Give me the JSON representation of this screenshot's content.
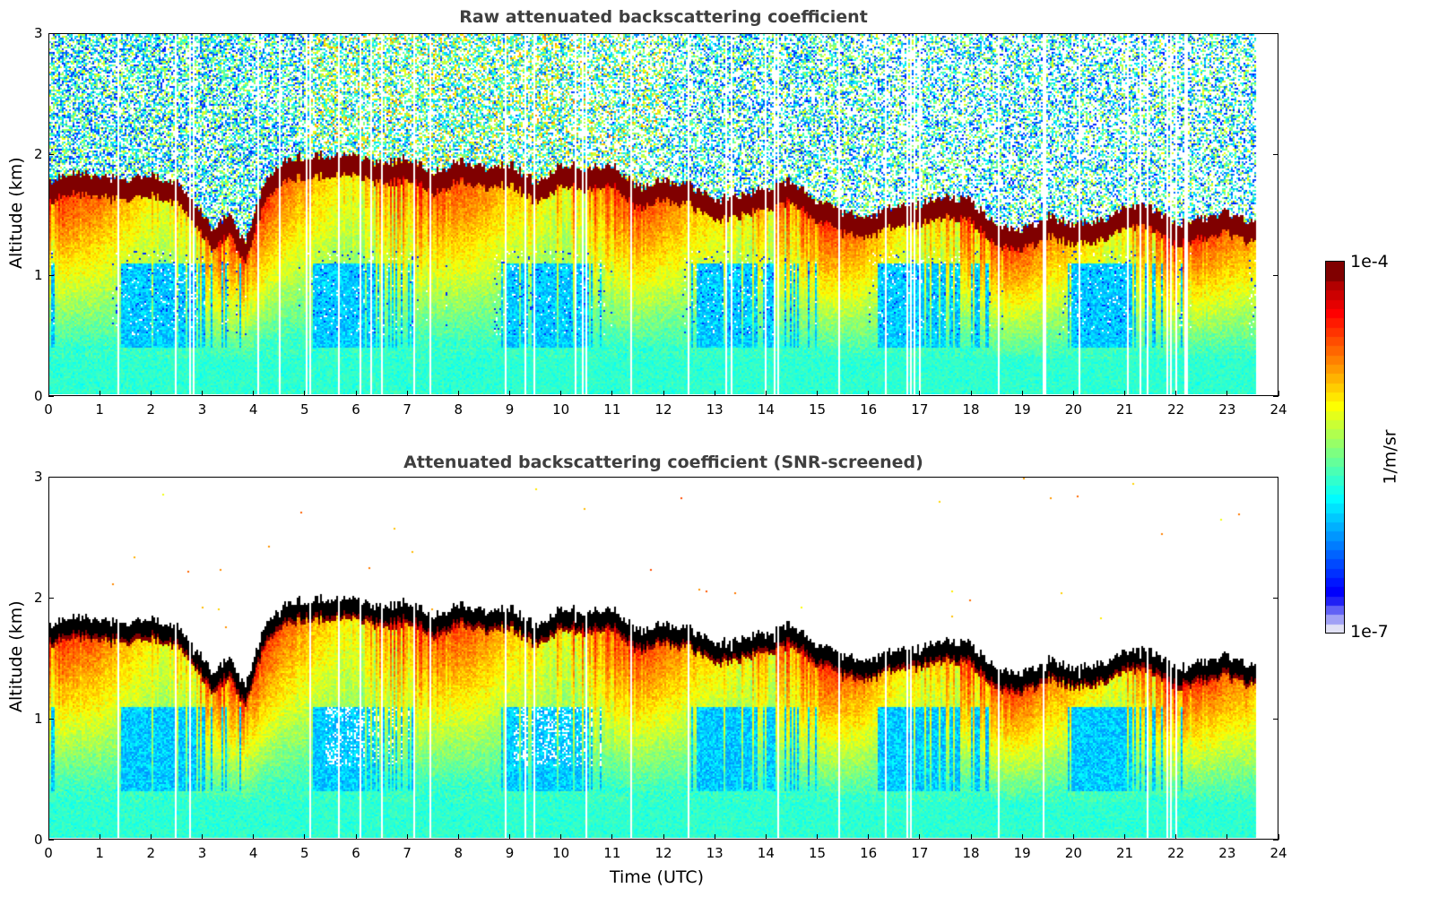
{
  "chart_data": [
    {
      "type": "heatmap",
      "title": "Raw attenuated backscattering coefficient",
      "xlabel": "",
      "ylabel": "Altitude (km)",
      "xlim": [
        0,
        24
      ],
      "ylim": [
        0,
        3
      ],
      "xticks": [
        "0",
        "1",
        "2",
        "3",
        "4",
        "5",
        "6",
        "7",
        "8",
        "9",
        "10",
        "11",
        "12",
        "13",
        "14",
        "15",
        "16",
        "17",
        "18",
        "19",
        "20",
        "21",
        "22",
        "23",
        "24"
      ],
      "yticks": [
        "0",
        "1",
        "2",
        "3"
      ],
      "data_end_time": 23.6,
      "screened": false
    },
    {
      "type": "heatmap",
      "title": "Attenuated backscattering coefficient (SNR-screened)",
      "xlabel": "Time (UTC)",
      "ylabel": "Altitude (km)",
      "xlim": [
        0,
        24
      ],
      "ylim": [
        0,
        3
      ],
      "xticks": [
        "0",
        "1",
        "2",
        "3",
        "4",
        "5",
        "6",
        "7",
        "8",
        "9",
        "10",
        "11",
        "12",
        "13",
        "14",
        "15",
        "16",
        "17",
        "18",
        "19",
        "20",
        "21",
        "22",
        "23",
        "24"
      ],
      "yticks": [
        "0",
        "1",
        "2",
        "3"
      ],
      "data_end_time": 23.6,
      "screened": true
    }
  ],
  "cloud_top_profile": {
    "description": "Approximate cloud/boundary-layer top altitude (km) vs time (UTC)",
    "time": [
      0,
      0.5,
      1,
      1.5,
      2,
      2.5,
      2.8,
      3.2,
      3.5,
      3.8,
      4.2,
      4.6,
      5,
      5.5,
      6,
      6.5,
      7,
      7.5,
      8,
      8.5,
      9,
      9.5,
      10,
      10.5,
      11,
      11.5,
      12,
      12.5,
      13,
      13.5,
      14,
      14.5,
      15,
      15.5,
      16,
      16.5,
      17,
      17.5,
      18,
      18.5,
      19,
      19.5,
      20,
      20.5,
      21,
      21.5,
      22,
      22.5,
      23,
      23.6
    ],
    "altitude_km": [
      1.72,
      1.78,
      1.74,
      1.72,
      1.76,
      1.7,
      1.55,
      1.3,
      1.45,
      1.2,
      1.7,
      1.9,
      1.92,
      1.93,
      1.93,
      1.85,
      1.9,
      1.78,
      1.88,
      1.82,
      1.85,
      1.7,
      1.85,
      1.82,
      1.84,
      1.65,
      1.72,
      1.68,
      1.55,
      1.6,
      1.65,
      1.72,
      1.55,
      1.45,
      1.4,
      1.5,
      1.52,
      1.58,
      1.55,
      1.35,
      1.3,
      1.42,
      1.35,
      1.38,
      1.5,
      1.5,
      1.35,
      1.4,
      1.45,
      1.35
    ]
  },
  "colorbar": {
    "max_label": "1e-4",
    "min_label": "1e-7",
    "unit_label": "1/m/sr",
    "colormap": "jet",
    "scale": "log",
    "range": [
      1e-07,
      0.0001
    ]
  }
}
